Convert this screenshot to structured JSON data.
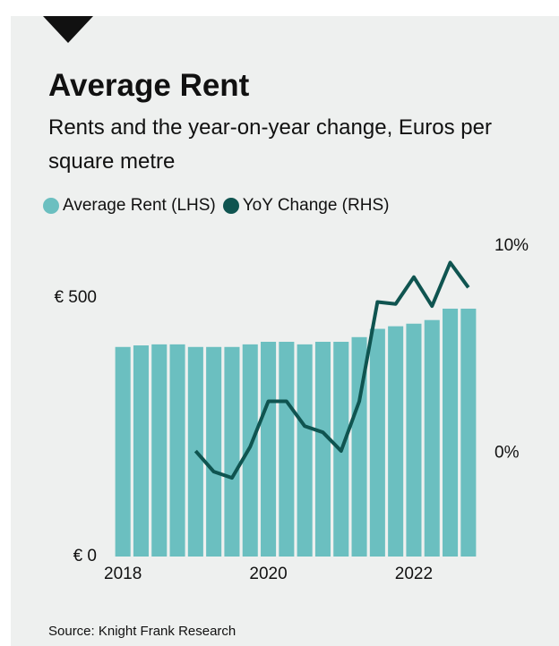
{
  "chart_data": {
    "type": "bar-line",
    "title": "Average Rent",
    "subtitle": "Rents and the year-on-year change, Euros per square metre",
    "source": "Source: Knight Frank Research",
    "categories": [
      "2018",
      null,
      null,
      null,
      null,
      null,
      null,
      null,
      "2020",
      null,
      null,
      null,
      null,
      null,
      null,
      null,
      "2022",
      null,
      null,
      null
    ],
    "series": [
      {
        "name": "Average Rent (LHS)",
        "color": "#6bbfc0",
        "type": "bar",
        "values": [
          405,
          408,
          410,
          410,
          405,
          405,
          405,
          410,
          415,
          415,
          410,
          415,
          415,
          424,
          440,
          445,
          450,
          457,
          479,
          479
        ]
      },
      {
        "name": "YoY Change (RHS)",
        "color": "#0f5450",
        "type": "line",
        "axis": "y2",
        "values": [
          null,
          null,
          null,
          null,
          0.1,
          -0.9,
          -1.2,
          0.3,
          2.5,
          2.5,
          1.3,
          1.0,
          0.1,
          2.5,
          7.3,
          7.2,
          8.5,
          7.1,
          9.2,
          8.0
        ]
      }
    ],
    "ylim": [
      0,
      600
    ],
    "yticks": [
      {
        "value": 0,
        "label": "€ 0"
      },
      {
        "value": 500,
        "label": "€ 500"
      }
    ],
    "y2lim": [
      -5,
      10
    ],
    "y2ticks": [
      {
        "value": 0,
        "label": "0%"
      },
      {
        "value": 10,
        "label": "10%"
      }
    ]
  }
}
